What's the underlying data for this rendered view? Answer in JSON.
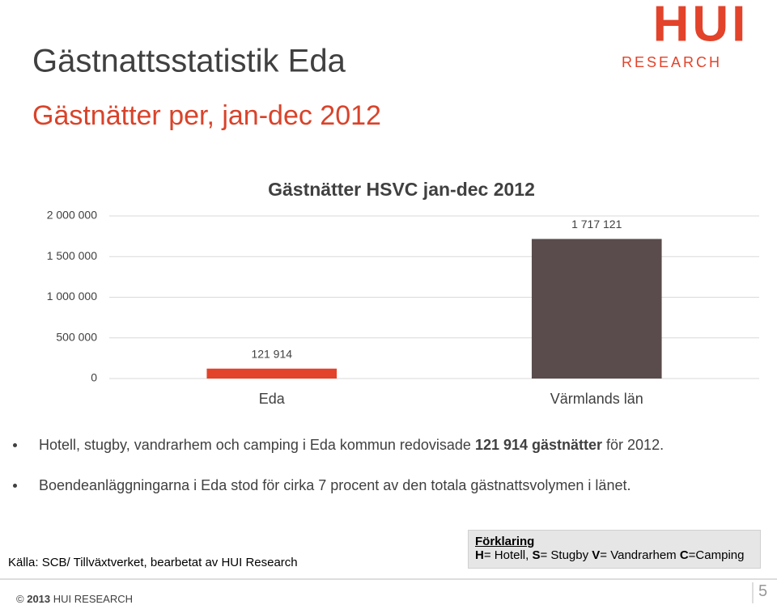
{
  "header": {
    "title": "Gästnattsstatistik Eda",
    "subtitle": "Gästnätter per, jan-dec 2012",
    "logo": "HUI",
    "logo_sub": "RESEARCH"
  },
  "chart_data": {
    "type": "bar",
    "title": "Gästnätter HSVC jan-dec 2012",
    "categories": [
      "Eda",
      "Värmlands län"
    ],
    "values": [
      121914,
      1717121
    ],
    "value_labels": [
      "121 914",
      "1 717 121"
    ],
    "colors": [
      "#e2432a",
      "#5a4b4c"
    ],
    "ylim": [
      0,
      2000000
    ],
    "yticks": [
      0,
      {
        "value": 500000,
        "label": "500 000"
      },
      {
        "value": 1000000,
        "label": "1 000 000"
      },
      {
        "value": 1500000,
        "label": "1 500 000"
      },
      {
        "value": 2000000,
        "label": "2 000 000"
      }
    ],
    "grid": true
  },
  "bullets": [
    [
      {
        "text": "Hotell, stugby, vandrarhem och camping i Eda kommun redovisade ",
        "bold": false
      },
      {
        "text": "121 914 gästnätter",
        "bold": true
      },
      {
        "text": " för 2012.",
        "bold": false
      }
    ],
    [
      {
        "text": "Boendeanläggningarna i Eda stod för cirka 7 procent av den totala gästnattsvolymen i länet.",
        "bold": false
      }
    ]
  ],
  "footer": {
    "source": "Källa: SCB/ Tillväxtverket, bearbetat av HUI Research",
    "legend_title": "Förklaring",
    "legend": [
      {
        "text": "H",
        "bold": true
      },
      {
        "text": "= Hotell, ",
        "bold": false
      },
      {
        "text": "S",
        "bold": true
      },
      {
        "text": "= Stugby ",
        "bold": false
      },
      {
        "text": "V",
        "bold": true
      },
      {
        "text": "= Vandrarhem ",
        "bold": false
      },
      {
        "text": "C",
        "bold": true
      },
      {
        "text": "=Camping",
        "bold": false
      }
    ],
    "copyright": {
      "symbol": "©",
      "year": "2013",
      "name": "HUI RESEARCH"
    },
    "page": "5"
  }
}
